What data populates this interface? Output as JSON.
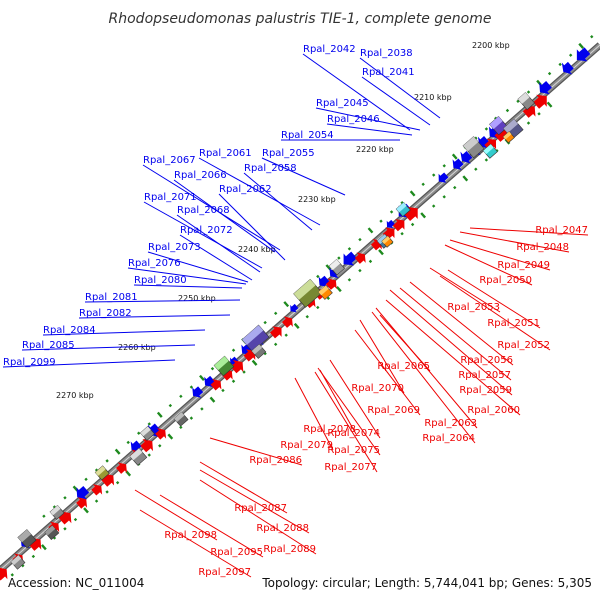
{
  "title": "Rhodopseudomonas palustris TIE-1, complete genome",
  "footer": {
    "accession": "Accession: NC_011004",
    "summary": "Topology: circular; Length: 5,744,041 bp; Genes: 5,305"
  },
  "colors": {
    "forward": "#0000ee",
    "reverse": "#ee0000",
    "backbone": "#8c8c8c",
    "tick": "#1e8a1e"
  },
  "ticks": [
    "2200 kbp",
    "2210 kbp",
    "2220 kbp",
    "2230 kbp",
    "2240 kbp",
    "2250 kbp",
    "2260 kbp",
    "2270 kbp"
  ],
  "forward_genes": [
    "Rpal_2042",
    "Rpal_2038",
    "Rpal_2041",
    "Rpal_2045",
    "Rpal_2046",
    "Rpal_2054",
    "Rpal_2055",
    "Rpal_2061",
    "Rpal_2058",
    "Rpal_2067",
    "Rpal_2066",
    "Rpal_2062",
    "Rpal_2071",
    "Rpal_2068",
    "Rpal_2072",
    "Rpal_2073",
    "Rpal_2076",
    "Rpal_2080",
    "Rpal_2081",
    "Rpal_2082",
    "Rpal_2084",
    "Rpal_2085",
    "Rpal_2099"
  ],
  "reverse_genes": [
    "Rpal_2047",
    "Rpal_2048",
    "Rpal_2049",
    "Rpal_2050",
    "Rpal_2053",
    "Rpal_2051",
    "Rpal_2052",
    "Rpal_2056",
    "Rpal_2057",
    "Rpal_2065",
    "Rpal_2059",
    "Rpal_2070",
    "Rpal_2060",
    "Rpal_2069",
    "Rpal_2063",
    "Rpal_2064",
    "Rpal_2078",
    "Rpal_2074",
    "Rpal_2079",
    "Rpal_2075",
    "Rpal_2077",
    "Rpal_2086",
    "Rpal_2087",
    "Rpal_2088",
    "Rpal_2098",
    "Rpal_2089",
    "Rpal_2095",
    "Rpal_2097"
  ]
}
